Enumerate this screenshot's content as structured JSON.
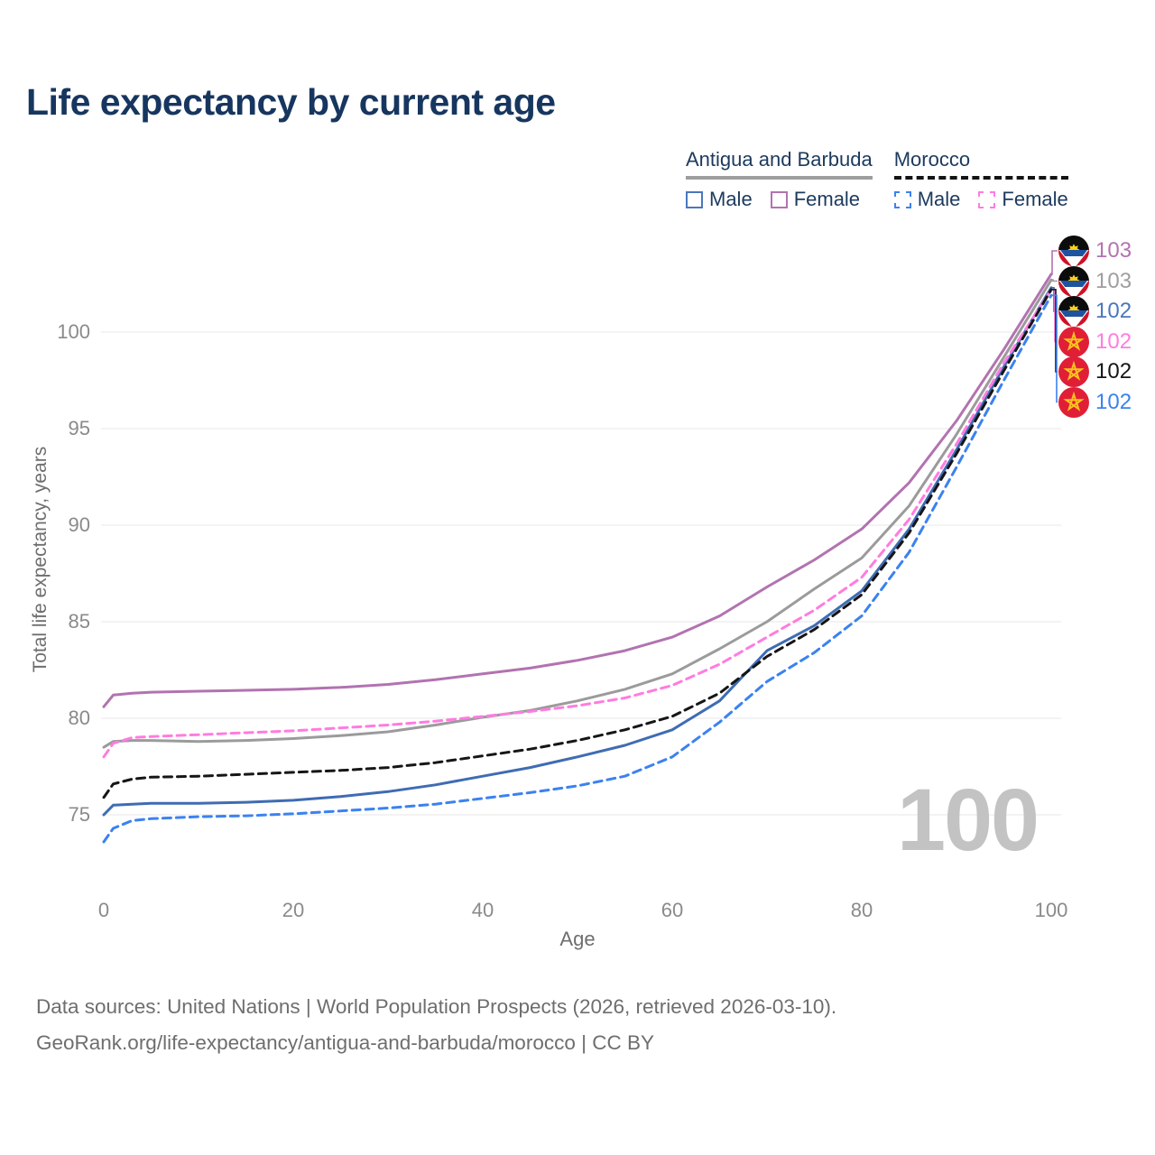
{
  "title": "Life expectancy by current age",
  "watermark": "100",
  "legend": {
    "groups": [
      {
        "label": "Antigua and Barbuda",
        "underline_style": "solid",
        "underline_color": "#9e9e9e",
        "items": [
          {
            "label": "Male",
            "color": "#4a77bc",
            "dashed": false
          },
          {
            "label": "Female",
            "color": "#b273b0",
            "dashed": false
          }
        ]
      },
      {
        "label": "Morocco",
        "underline_style": "dashed",
        "underline_color": "#141414",
        "items": [
          {
            "label": "Male",
            "color": "#3b82f0",
            "dashed": true
          },
          {
            "label": "Female",
            "color": "#ff7ce0",
            "dashed": true
          }
        ]
      }
    ]
  },
  "chart_data": {
    "type": "line",
    "title": "Life expectancy by current age",
    "xlabel": "Age",
    "ylabel": "Total life expectancy, years",
    "xlim": [
      0,
      100
    ],
    "ylim": [
      73,
      104
    ],
    "x_ticks": [
      0,
      20,
      40,
      60,
      80,
      100
    ],
    "y_ticks": [
      75,
      80,
      85,
      90,
      95,
      100
    ],
    "grid": "horizontal",
    "legend_position": "top-right",
    "x": [
      0,
      1,
      3,
      5,
      10,
      15,
      20,
      25,
      30,
      35,
      40,
      45,
      50,
      55,
      60,
      65,
      70,
      75,
      80,
      85,
      90,
      95,
      100
    ],
    "series": [
      {
        "name": "Antigua and Barbuda — Female",
        "country": "Antigua and Barbuda",
        "sex": "Female",
        "color": "#b273b0",
        "dashed": false,
        "flag": "antigua-and-barbuda",
        "end_label": "103",
        "end_label_color": "#b273b0",
        "values": [
          80.6,
          81.2,
          81.3,
          81.35,
          81.4,
          81.45,
          81.5,
          81.6,
          81.75,
          82.0,
          82.3,
          82.6,
          83.0,
          83.5,
          84.2,
          85.3,
          86.8,
          88.2,
          89.8,
          92.2,
          95.4,
          99.1,
          103.0
        ]
      },
      {
        "name": "Antigua and Barbuda — Total",
        "country": "Antigua and Barbuda",
        "sex": "Total",
        "color": "#9b9b9b",
        "dashed": false,
        "flag": "antigua-and-barbuda",
        "end_label": "103",
        "end_label_color": "#9e9e9e",
        "values": [
          78.5,
          78.8,
          78.85,
          78.85,
          78.8,
          78.85,
          78.95,
          79.1,
          79.3,
          79.65,
          80.05,
          80.4,
          80.9,
          81.5,
          82.3,
          83.6,
          85.0,
          86.7,
          88.3,
          91.0,
          94.7,
          98.7,
          102.7
        ]
      },
      {
        "name": "Antigua and Barbuda — Male",
        "country": "Antigua and Barbuda",
        "sex": "Male",
        "color": "#3f6cb3",
        "dashed": false,
        "flag": "antigua-and-barbuda",
        "end_label": "102",
        "end_label_color": "#4a77bc",
        "values": [
          75.0,
          75.5,
          75.55,
          75.6,
          75.6,
          75.65,
          75.75,
          75.95,
          76.2,
          76.55,
          77.0,
          77.45,
          78.0,
          78.6,
          79.4,
          80.9,
          83.5,
          84.8,
          86.6,
          89.8,
          93.9,
          98.2,
          102.3
        ]
      },
      {
        "name": "Morocco — Female",
        "country": "Morocco",
        "sex": "Female",
        "color": "#ff7ce0",
        "dashed": true,
        "flag": "morocco",
        "end_label": "102",
        "end_label_color": "#ff7ce0",
        "values": [
          78.0,
          78.7,
          79.0,
          79.05,
          79.15,
          79.25,
          79.35,
          79.5,
          79.65,
          79.85,
          80.1,
          80.35,
          80.65,
          81.05,
          81.7,
          82.8,
          84.2,
          85.6,
          87.3,
          90.3,
          94.2,
          98.4,
          102.2
        ]
      },
      {
        "name": "Morocco — Total",
        "country": "Morocco",
        "sex": "Total",
        "color": "#161616",
        "dashed": true,
        "flag": "morocco",
        "end_label": "102",
        "end_label_color": "#161616",
        "values": [
          75.9,
          76.6,
          76.85,
          76.95,
          77.0,
          77.1,
          77.2,
          77.3,
          77.45,
          77.7,
          78.05,
          78.4,
          78.85,
          79.4,
          80.1,
          81.3,
          83.2,
          84.6,
          86.4,
          89.6,
          93.7,
          98.0,
          102.2
        ]
      },
      {
        "name": "Morocco — Male",
        "country": "Morocco",
        "sex": "Male",
        "color": "#3b82f0",
        "dashed": true,
        "flag": "morocco",
        "end_label": "102",
        "end_label_color": "#3b82f0",
        "values": [
          73.6,
          74.3,
          74.7,
          74.8,
          74.9,
          74.95,
          75.05,
          75.2,
          75.35,
          75.55,
          75.85,
          76.15,
          76.5,
          77.0,
          78.0,
          79.8,
          81.9,
          83.4,
          85.3,
          88.6,
          93.0,
          97.5,
          101.9
        ]
      }
    ]
  },
  "footer": {
    "line1": "Data sources: United Nations | World Population Prospects (2026, retrieved 2026-03-10).",
    "line2": "GeoRank.org/life-expectancy/antigua-and-barbuda/morocco | CC BY"
  }
}
